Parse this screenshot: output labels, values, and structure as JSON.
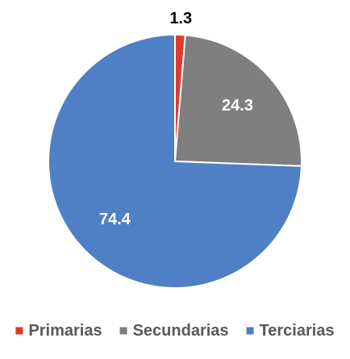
{
  "chart_data": {
    "type": "pie",
    "title": "",
    "categories": [
      "Primarias",
      "Secundarias",
      "Terciarias"
    ],
    "values": [
      1.3,
      24.3,
      74.4
    ],
    "value_labels": [
      "1.3",
      "24.3",
      "74.4"
    ],
    "colors": [
      "#e03a2c",
      "#7f7f7f",
      "#4f7fc4"
    ],
    "label_colors": [
      "#000000",
      "#ffffff",
      "#ffffff"
    ],
    "label_placement": [
      "outside",
      "inside",
      "inside"
    ],
    "start_angle_deg": 0,
    "direction": "clockwise",
    "legend_position": "bottom"
  }
}
